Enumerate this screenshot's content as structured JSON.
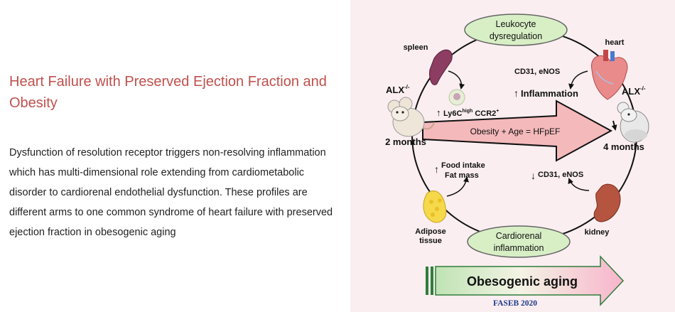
{
  "heading": "Heart Failure with Preserved Ejection Fraction and Obesity",
  "description": "Dysfunction of resolution receptor triggers non-resolving inflammation which has multi-dimensional role extending from cardiometabolic disorder to cardiorenal endothelial dysfunction. These profiles are different arms to one common syndrome of heart failure with preserved ejection fraction in obesogenic aging",
  "diagram": {
    "leukocyte_l1": "Leukocyte",
    "leukocyte_l2": "dysregulation",
    "cardiorenal_l1": "Cardiorenal",
    "cardiorenal_l2": "inflammation",
    "spleen": "spleen",
    "heart": "heart",
    "kidney": "kidney",
    "adipose_l1": "Adipose",
    "adipose_l2": "tissue",
    "alx_left": "ALX",
    "alx_right": "ALX",
    "alx_sup": "-/-",
    "months_2": "2 months",
    "months_4": "4 months",
    "ly6c_a": "Ly6C",
    "ly6c_sup": "high",
    "ly6c_b": " CCR2",
    "ly6c_plus": "+",
    "cd31_top": "CD31, eNOS",
    "inflammation": "Inflammation",
    "big_arrow": "Obesity + Age = HFpEF",
    "food_intake": "Food intake",
    "fat_mass": "Fat mass",
    "cd31_bottom": "CD31, eNOS",
    "obesogenic_aging": "Obesogenic aging",
    "citation": "FASEB 2020",
    "up_arrow": "↑",
    "down_arrow": "↓"
  },
  "colors": {
    "heading": "#c0504d",
    "panel_bg": "#faeef0",
    "big_arrow": "#f4b9bb",
    "oval": "#d8efc6",
    "citation": "#1f3a8a"
  }
}
